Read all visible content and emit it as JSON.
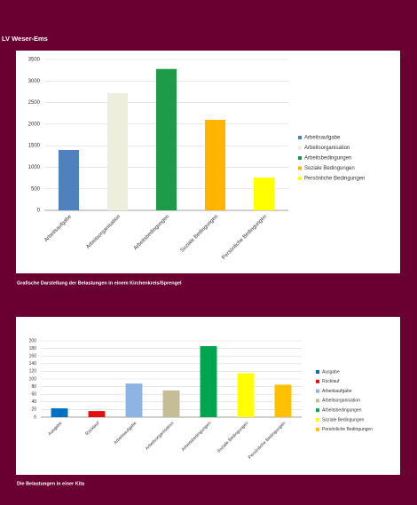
{
  "header": "LV Weser-Ems",
  "chart_data": [
    {
      "type": "bar",
      "caption": "Grafische Darstellung der Belastungen in einem Kirchenkreis/Sprengel",
      "categories": [
        "Arbeitsaufgabe",
        "Arbeitsorganisation",
        "Arbeitsbedingungen",
        "Soziale Bedingungen",
        "Persönliche Bedingungen"
      ],
      "values": [
        1400,
        2720,
        3280,
        2100,
        760
      ],
      "colors": [
        "#4f81bd",
        "#eeeedc",
        "#1e9b48",
        "#ffb400",
        "#ffff00"
      ],
      "ylim": [
        0,
        3500
      ],
      "yticks": [
        0,
        500,
        1000,
        1500,
        2000,
        2500,
        3000,
        3500
      ],
      "grid": true,
      "legend": "right"
    },
    {
      "type": "bar",
      "caption": "Die Belastungen in einer Kita",
      "categories": [
        "Ausgabe",
        "Rücklauf",
        "Arbeitsaufgabe",
        "Arbeitsorganisation",
        "Arbeitsbedingungen",
        "Soziale Bedingungen",
        "Persönliche Bedingungen"
      ],
      "values": [
        23,
        16,
        88,
        70,
        186,
        115,
        85
      ],
      "colors": [
        "#0070c0",
        "#e01010",
        "#8db4e2",
        "#c4bd97",
        "#00a550",
        "#ffff00",
        "#ffc000"
      ],
      "ylim": [
        0,
        200
      ],
      "yticks": [
        0,
        20,
        40,
        60,
        80,
        100,
        120,
        140,
        160,
        180,
        200
      ],
      "grid": true,
      "legend": "right"
    }
  ]
}
